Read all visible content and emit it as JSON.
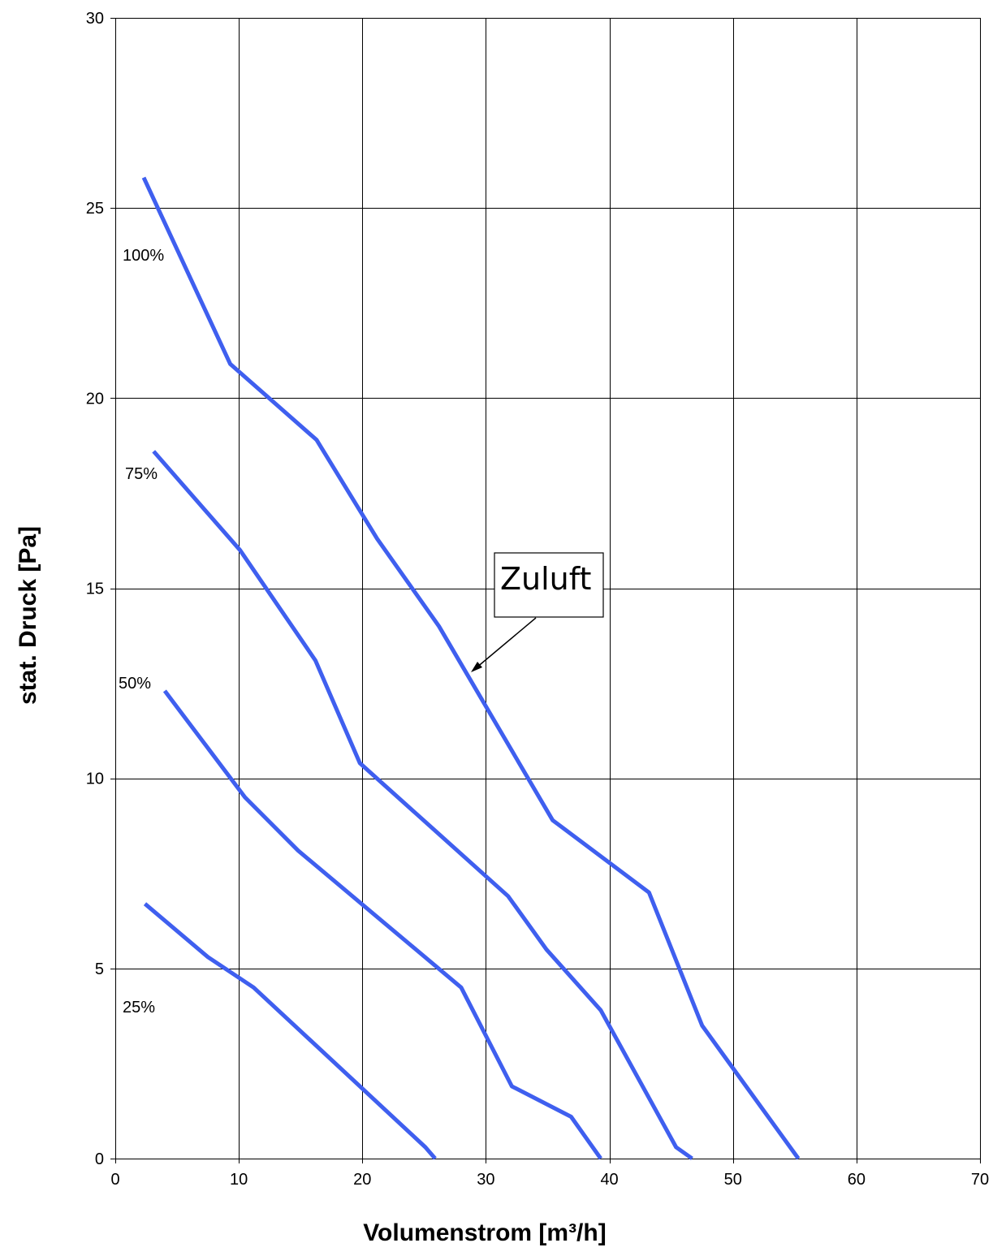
{
  "chart_data": {
    "type": "line",
    "xlabel": "Volumenstrom [m³/h]",
    "ylabel": "stat. Druck [Pa]",
    "xlim": [
      0,
      70
    ],
    "ylim": [
      0,
      30
    ],
    "x_ticks": [
      "0",
      "10",
      "20",
      "30",
      "40",
      "50",
      "60",
      "70"
    ],
    "y_ticks": [
      "0",
      "5",
      "10",
      "15",
      "20",
      "25",
      "30"
    ],
    "grid": true,
    "line_color": "#3F5FEF",
    "series": [
      {
        "label": "100%",
        "x": [
          2.3,
          9.3,
          16.3,
          21.2,
          26.2,
          35.4,
          43.2,
          47.5,
          55.3
        ],
        "y": [
          25.8,
          20.9,
          18.9,
          16.3,
          14.0,
          8.9,
          7.0,
          3.5,
          0.0
        ]
      },
      {
        "label": "75%",
        "x": [
          3.1,
          10.1,
          16.2,
          19.8,
          31.8,
          34.9,
          39.3,
          45.4,
          46.7
        ],
        "y": [
          18.6,
          16.0,
          13.1,
          10.4,
          6.9,
          5.5,
          3.9,
          0.3,
          0.0
        ]
      },
      {
        "label": "50%",
        "x": [
          4.0,
          10.5,
          14.8,
          28.0,
          32.1,
          36.9,
          39.3
        ],
        "y": [
          12.3,
          9.5,
          8.1,
          4.5,
          1.9,
          1.1,
          0.0
        ]
      },
      {
        "label": "25%",
        "x": [
          2.4,
          7.5,
          11.2,
          25.1,
          25.9
        ],
        "y": [
          6.7,
          5.3,
          4.5,
          0.3,
          0.0
        ]
      }
    ],
    "annotations": {
      "callout": "Zuluft"
    }
  }
}
